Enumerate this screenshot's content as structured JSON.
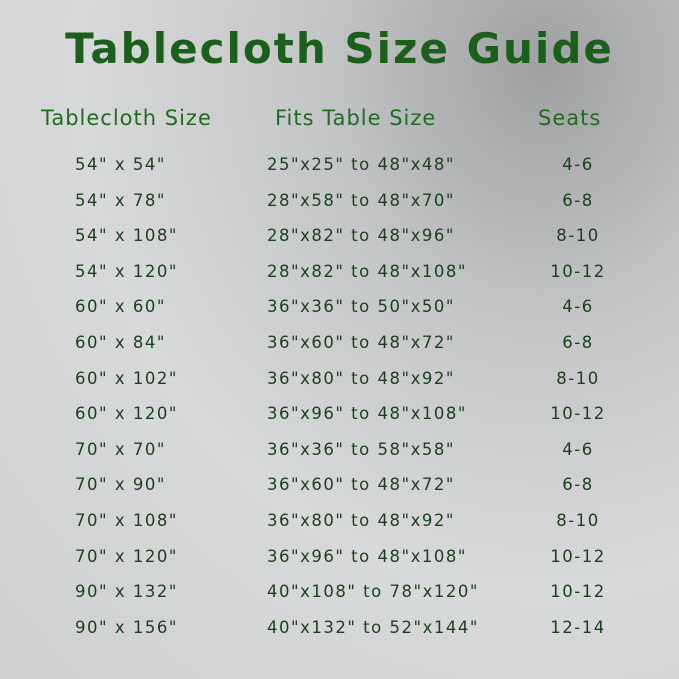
{
  "title": "Tablecloth Size Guide",
  "headers": [
    "Tablecloth Size",
    "Fits Table Size",
    "Seats"
  ],
  "rows": [
    [
      "54\" x 54\"",
      "25\"x25\" to 48\"x48\"",
      "4-6"
    ],
    [
      "54\" x 78\"",
      "28\"x58\" to 48\"x70\"",
      "6-8"
    ],
    [
      "54\" x 108\"",
      "28\"x82\" to 48\"x96\"",
      "8-10"
    ],
    [
      "54\" x 120\"",
      "28\"x82\" to 48\"x108\"",
      "10-12"
    ],
    [
      "60\" x 60\"",
      "36\"x36\" to 50\"x50\"",
      "4-6"
    ],
    [
      "60\" x 84\"",
      "36\"x60\" to 48\"x72\"",
      "6-8"
    ],
    [
      "60\" x 102\"",
      "36\"x80\" to 48\"x92\"",
      "8-10"
    ],
    [
      "60\" x 120\"",
      "36\"x96\" to 48\"x108\"",
      "10-12"
    ],
    [
      "70\" x 70\"",
      "36\"x36\" to 58\"x58\"",
      "4-6"
    ],
    [
      "70\" x 90\"",
      "36\"x60\" to 48\"x72\"",
      "6-8"
    ],
    [
      "70\" x 108\"",
      "36\"x80\" to 48\"x92\"",
      "8-10"
    ],
    [
      "70\" x 120\"",
      "36\"x96\" to 48\"x108\"",
      "10-12"
    ],
    [
      "90\" x 132\"",
      "40\"x108\" to 78\"x120\"",
      "10-12"
    ],
    [
      "90\" x 156\"",
      "40\"x132\" to 52\"x144\"",
      "12-14"
    ]
  ],
  "colors": {
    "title": "#1c5e1c",
    "header": "#226b22",
    "text": "#1d3f1d"
  }
}
